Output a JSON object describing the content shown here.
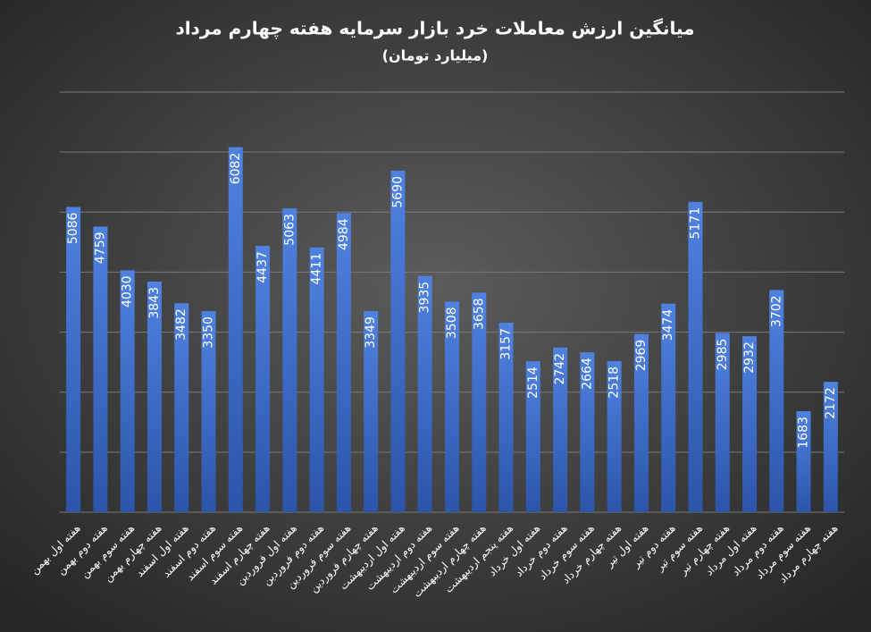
{
  "chart_data": {
    "type": "bar",
    "title": "میانگین ارزش معاملات خرد بازار سرمایه هفته چهارم مرداد",
    "subtitle": "(میلیارد تومان)",
    "categories": [
      "هفته اول بهمن",
      "هفته دوم بهمن",
      "هفته سوم بهمن",
      "هفته چهارم بهمن",
      "هفته اول اسفند",
      "هفته دوم اسفند",
      "هفته سوم اسفند",
      "هفته چهارم اسفند",
      "هفته اول فروردین",
      "هفته دوم فروردین",
      "هفته سوم فروردین",
      "هفته چهارم فروردین",
      "هفته اول اردیبهشت",
      "هفته دوم اردیبهشت",
      "هفته سوم اردیبهشت",
      "هفته چهارم اردیبهشت",
      "هفته پنجم اردیبهشت",
      "هفته اول خرداد",
      "هفته دوم خرداد",
      "هفته سوم خرداد",
      "هفته چهارم خرداد",
      "هفته اول تیر",
      "هفته دوم تیر",
      "هفته سوم تیر",
      "هفته چهارم تیر",
      "هفته اول مرداد",
      "هفته دوم مرداد",
      "هفته سوم مرداد",
      "هفته چهارم مرداد"
    ],
    "values": [
      5086,
      4759,
      4030,
      3843,
      3482,
      3350,
      6082,
      4437,
      5063,
      4411,
      4984,
      3349,
      5690,
      3935,
      3508,
      3658,
      3157,
      2514,
      2742,
      2664,
      2518,
      2969,
      3474,
      5171,
      2985,
      2932,
      3702,
      1683,
      2172
    ],
    "color": "#3f6fcf",
    "ylim": [
      0,
      7000
    ],
    "yticks": [
      0,
      1000,
      2000,
      3000,
      4000,
      5000,
      6000,
      7000
    ],
    "grid": true
  }
}
